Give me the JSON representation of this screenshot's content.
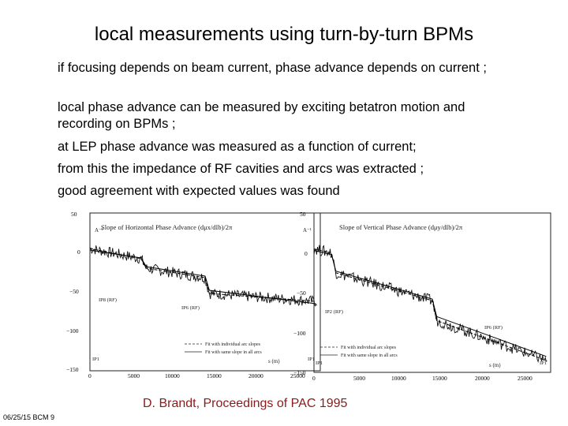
{
  "slide": {
    "title": "local measurements using turn-by-turn BPMs",
    "bullets": [
      "if focusing depends on beam current, phase advance depends on current ;",
      "local phase advance can be measured by exciting betatron motion and recording on BPMs ;",
      "at LEP phase advance was measured as a function of current;",
      "from this the impedance of RF cavities and arcs was extracted ;",
      "good agreement with expected values was found"
    ],
    "caption": "D. Brandt, Proceedings of PAC 1995",
    "footer": "06/25/15 BCM 9"
  },
  "chart_data": [
    {
      "type": "line",
      "title": "Slope of Horizontal Phase Advance (dμx/dIb)/2π",
      "xlabel": "s (m)",
      "ylabel": "A⁻¹",
      "xlim": [
        0,
        27000
      ],
      "ylim": [
        -150,
        50
      ],
      "xticks": [
        "0",
        "5000",
        "10000",
        "15000",
        "20000",
        "25000"
      ],
      "yticks": [
        "50",
        "0",
        "−50",
        "−100",
        "−150"
      ],
      "annotations": [
        "IP8 (RF)",
        "IP6 (RF)",
        "IP1",
        "IP1"
      ],
      "legend": [
        "Fit with individual arc slopes",
        "Fit with same slope in all arcs"
      ],
      "series": [
        {
          "name": "Fit with individual arc slopes",
          "x": [
            0,
            6000,
            6600,
            13500,
            14000,
            26500
          ],
          "y": [
            5,
            -8,
            -20,
            -32,
            -52,
            -62
          ]
        },
        {
          "name": "Fit with same slope in all arcs",
          "x": [
            0,
            6000,
            6600,
            13500,
            14000,
            26500
          ],
          "y": [
            3,
            -7,
            -18,
            -30,
            -48,
            -65
          ]
        }
      ]
    },
    {
      "type": "line",
      "title": "Slope of Vertical Phase Advance (dμy/dIb)/2π",
      "xlabel": "s (m)",
      "ylabel": "A⁻¹",
      "xlim": [
        0,
        27000
      ],
      "ylim": [
        -150,
        50
      ],
      "xticks": [
        "0",
        "5000",
        "10000",
        "15000",
        "20000",
        "25000"
      ],
      "yticks": [
        "50",
        "0",
        "−50",
        "−100",
        "−150"
      ],
      "annotations": [
        "IP2 (RF)",
        "IP6 (RF)",
        "IP1",
        "IP1"
      ],
      "legend": [
        "Fit with individual arc slopes",
        "Fit with same slope in all arcs"
      ],
      "series": [
        {
          "name": "Fit with individual arc slopes",
          "x": [
            0,
            2000,
            2500,
            13500,
            14000,
            26500
          ],
          "y": [
            5,
            0,
            -25,
            -60,
            -85,
            -135
          ]
        },
        {
          "name": "Fit with same slope in all arcs",
          "x": [
            0,
            2000,
            2500,
            13500,
            14000,
            26500
          ],
          "y": [
            3,
            -2,
            -23,
            -58,
            -80,
            -130
          ]
        }
      ]
    }
  ]
}
